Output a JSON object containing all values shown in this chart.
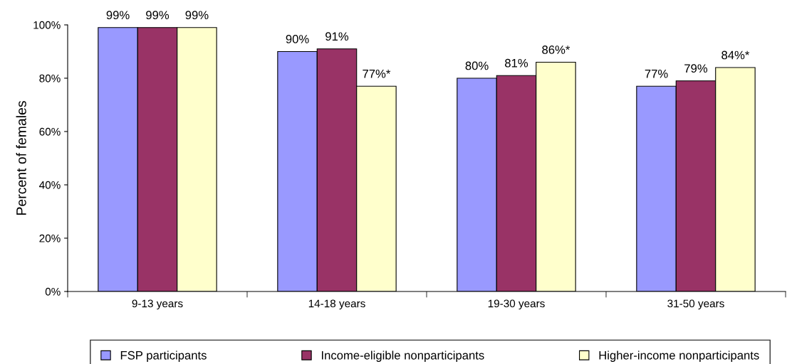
{
  "chart_data": {
    "type": "bar",
    "ylabel": "Percent of females",
    "categories": [
      "9-13 years",
      "14-18 years",
      "19-30 years",
      "31-50 years"
    ],
    "series": [
      {
        "name": "FSP participants",
        "color": "#9999ff",
        "values": [
          99,
          90,
          80,
          77
        ],
        "value_labels": [
          "99%",
          "90%",
          "80%",
          "77%"
        ]
      },
      {
        "name": "Income-eligible nonparticipants",
        "color": "#993366",
        "values": [
          99,
          91,
          81,
          79
        ],
        "value_labels": [
          "99%",
          "91%",
          "81%",
          "79%"
        ]
      },
      {
        "name": "Higher-income nonparticipants",
        "color": "#ffffcc",
        "values": [
          99,
          77,
          86,
          84
        ],
        "value_labels": [
          "99%",
          "77%*",
          "86%*",
          "84%*"
        ]
      }
    ],
    "ylim": [
      0,
      100
    ],
    "yticks": [
      {
        "value": 0,
        "label": "0%"
      },
      {
        "value": 20,
        "label": "20%"
      },
      {
        "value": 40,
        "label": "40%"
      },
      {
        "value": 60,
        "label": "60%"
      },
      {
        "value": 80,
        "label": "80%"
      },
      {
        "value": 100,
        "label": "100%"
      }
    ],
    "grid": false,
    "legend": "bottom"
  }
}
